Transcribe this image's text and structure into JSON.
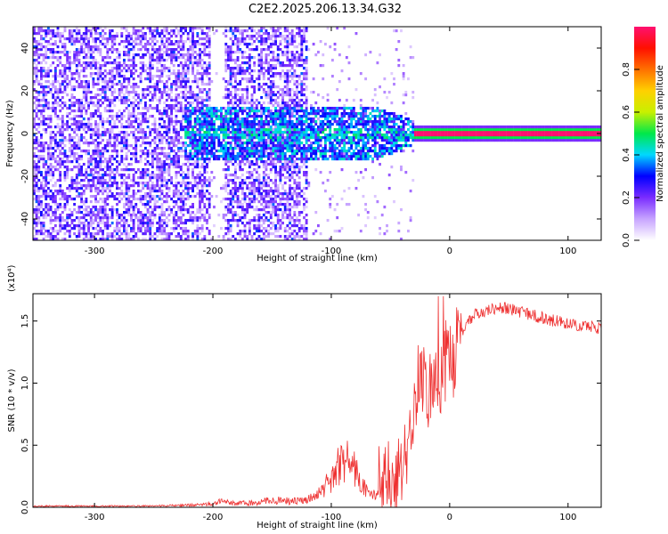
{
  "title": "C2E2.2025.206.13.34.G32",
  "chart_data": [
    {
      "type": "heatmap",
      "xlabel": "Height of straight line (km)",
      "ylabel": "Frequency (Hz)",
      "xlim": [
        -352,
        128
      ],
      "ylim": [
        -50,
        50
      ],
      "xticks": [
        -300,
        -200,
        -100,
        0,
        100
      ],
      "yticks": [
        -40,
        -20,
        0,
        20,
        40
      ],
      "colorbar": {
        "label": "Normalized spectral amplitude",
        "range": [
          0,
          1
        ],
        "ticks": [
          "0.0",
          "0.2",
          "0.4",
          "0.6",
          "0.8"
        ],
        "tick_values": [
          0.0,
          0.2,
          0.4,
          0.6,
          0.8
        ],
        "colors": [
          "#ffffff",
          "#c7a4ff",
          "#7a2cff",
          "#0000ff",
          "#00d8ff",
          "#00e84a",
          "#c8f000",
          "#ffd000",
          "#ff7000",
          "#ff1000",
          "#ff1070"
        ]
      },
      "features": {
        "noise_region_x": [
          -352,
          -120
        ],
        "vertical_gap_x": [
          -203,
          -190
        ],
        "broadband_region_x": [
          -225,
          -30
        ],
        "carrier_start_x": -30,
        "carrier_frequency_hz": 0,
        "carrier_amplitude": 1.0
      }
    },
    {
      "type": "line",
      "xlabel": "Height of straight line (km)",
      "ylabel": "SNR (10 * v/v)",
      "multiplier": "(x10⁴)",
      "xlim": [
        -352,
        128
      ],
      "ylim": [
        0,
        1.72
      ],
      "xticks": [
        -300,
        -200,
        -100,
        0,
        100
      ],
      "yticks": [
        0.0,
        0.5,
        1.0,
        1.5
      ],
      "line_color": "#ee3030",
      "series": [
        {
          "x": [
            -352,
            -300,
            -250,
            -210,
            -200,
            -195,
            -190,
            -180,
            -160,
            -150,
            -140,
            -130,
            -120,
            -110,
            -100,
            -95,
            -90,
            -85,
            -80,
            -75,
            -70,
            -65,
            -60,
            -55,
            -50,
            -45,
            -40,
            -35,
            -30,
            -28,
            -25,
            -20,
            -15,
            -10,
            -5,
            0,
            5,
            10,
            20,
            30,
            40,
            50,
            60,
            70,
            80,
            90,
            100,
            110,
            120,
            128
          ],
          "y": [
            0.01,
            0.01,
            0.01,
            0.02,
            0.03,
            0.06,
            0.04,
            0.03,
            0.04,
            0.06,
            0.05,
            0.05,
            0.06,
            0.12,
            0.22,
            0.32,
            0.38,
            0.36,
            0.3,
            0.2,
            0.12,
            0.1,
            0.14,
            0.2,
            0.22,
            0.2,
            0.3,
            0.5,
            0.8,
            1.0,
            1.15,
            0.9,
            0.95,
            1.05,
            1.15,
            1.2,
            1.25,
            1.4,
            1.55,
            1.58,
            1.6,
            1.6,
            1.57,
            1.55,
            1.52,
            1.5,
            1.48,
            1.46,
            1.45,
            1.44
          ]
        }
      ]
    }
  ]
}
